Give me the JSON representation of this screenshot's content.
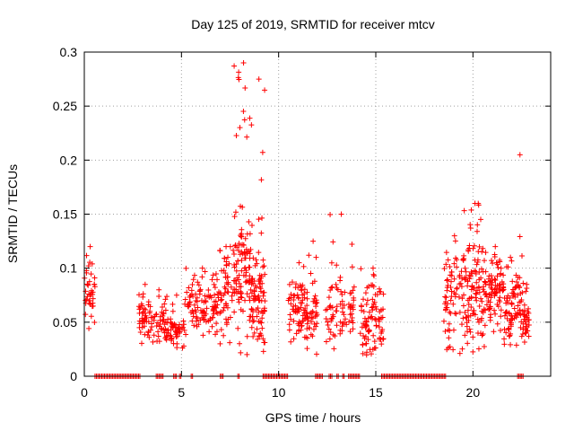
{
  "chart_data": {
    "type": "scatter",
    "title": "Day 125 of 2019, SRMTID for receiver mtcv",
    "xlabel": "GPS time / hours",
    "ylabel": "SRMTID / TECUs",
    "xlim": [
      0,
      24
    ],
    "ylim": [
      0,
      0.3
    ],
    "xticks": [
      0,
      5,
      10,
      15,
      20
    ],
    "yticks": [
      0,
      0.05,
      0.1,
      0.15,
      0.2,
      0.25,
      0.3
    ],
    "xtick_labels": [
      "0",
      "5",
      "10",
      "15",
      "20"
    ],
    "ytick_labels": [
      "0",
      "0.05",
      "0.1",
      "0.15",
      "0.2",
      "0.25",
      "0.3"
    ],
    "grid": true,
    "marker": "+",
    "color": "#ff0000",
    "series": [
      {
        "name": "SRMTID",
        "clusters": [
          {
            "x0": 0.0,
            "x1": 0.55,
            "count": 40,
            "ymin": 0.04,
            "ymax": 0.12,
            "center": 0.08
          },
          {
            "x0": 2.8,
            "x1": 3.4,
            "count": 45,
            "ymin": 0.03,
            "ymax": 0.085,
            "center": 0.055
          },
          {
            "x0": 3.4,
            "x1": 4.2,
            "count": 40,
            "ymin": 0.025,
            "ymax": 0.08,
            "center": 0.05
          },
          {
            "x0": 4.2,
            "x1": 5.2,
            "count": 60,
            "ymin": 0.02,
            "ymax": 0.075,
            "center": 0.04
          },
          {
            "x0": 5.2,
            "x1": 6.8,
            "count": 100,
            "ymin": 0.03,
            "ymax": 0.1,
            "center": 0.065
          },
          {
            "x0": 6.8,
            "x1": 7.7,
            "count": 60,
            "ymin": 0.03,
            "ymax": 0.12,
            "center": 0.08
          },
          {
            "x0": 7.7,
            "x1": 8.6,
            "count": 110,
            "ymin": 0.02,
            "ymax": 0.29,
            "center": 0.1
          },
          {
            "x0": 8.6,
            "x1": 9.3,
            "count": 90,
            "ymin": 0.01,
            "ymax": 0.275,
            "center": 0.07
          },
          {
            "x0": 10.5,
            "x1": 11.5,
            "count": 80,
            "ymin": 0.025,
            "ymax": 0.105,
            "center": 0.06
          },
          {
            "x0": 11.5,
            "x1": 12.0,
            "count": 35,
            "ymin": 0.02,
            "ymax": 0.125,
            "center": 0.055
          },
          {
            "x0": 12.4,
            "x1": 13.9,
            "count": 80,
            "ymin": 0.02,
            "ymax": 0.15,
            "center": 0.06
          },
          {
            "x0": 14.2,
            "x1": 15.4,
            "count": 90,
            "ymin": 0.01,
            "ymax": 0.1,
            "center": 0.05
          },
          {
            "x0": 18.5,
            "x1": 19.5,
            "count": 70,
            "ymin": 0.02,
            "ymax": 0.13,
            "center": 0.075
          },
          {
            "x0": 19.5,
            "x1": 20.6,
            "count": 110,
            "ymin": 0.015,
            "ymax": 0.16,
            "center": 0.085
          },
          {
            "x0": 20.6,
            "x1": 21.6,
            "count": 90,
            "ymin": 0.04,
            "ymax": 0.12,
            "center": 0.08
          },
          {
            "x0": 21.6,
            "x1": 22.2,
            "count": 55,
            "ymin": 0.025,
            "ymax": 0.11,
            "center": 0.06
          },
          {
            "x0": 22.2,
            "x1": 22.6,
            "count": 35,
            "ymin": 0.02,
            "ymax": 0.205,
            "center": 0.07
          },
          {
            "x0": 22.6,
            "x1": 22.9,
            "count": 30,
            "ymin": 0.02,
            "ymax": 0.085,
            "center": 0.05
          }
        ],
        "zero_segments": [
          [
            0.55,
            2.9
          ],
          [
            3.7,
            4.1
          ],
          [
            4.6,
            4.8
          ],
          [
            4.9,
            5.0
          ],
          [
            5.5,
            5.6
          ],
          [
            7.0,
            7.15
          ],
          [
            7.9,
            8.0
          ],
          [
            9.2,
            10.5
          ],
          [
            11.9,
            12.3
          ],
          [
            12.6,
            12.8
          ],
          [
            13.0,
            13.1
          ],
          [
            13.3,
            13.4
          ],
          [
            13.6,
            14.2
          ],
          [
            15.3,
            18.6
          ],
          [
            22.3,
            22.6
          ]
        ]
      }
    ]
  }
}
